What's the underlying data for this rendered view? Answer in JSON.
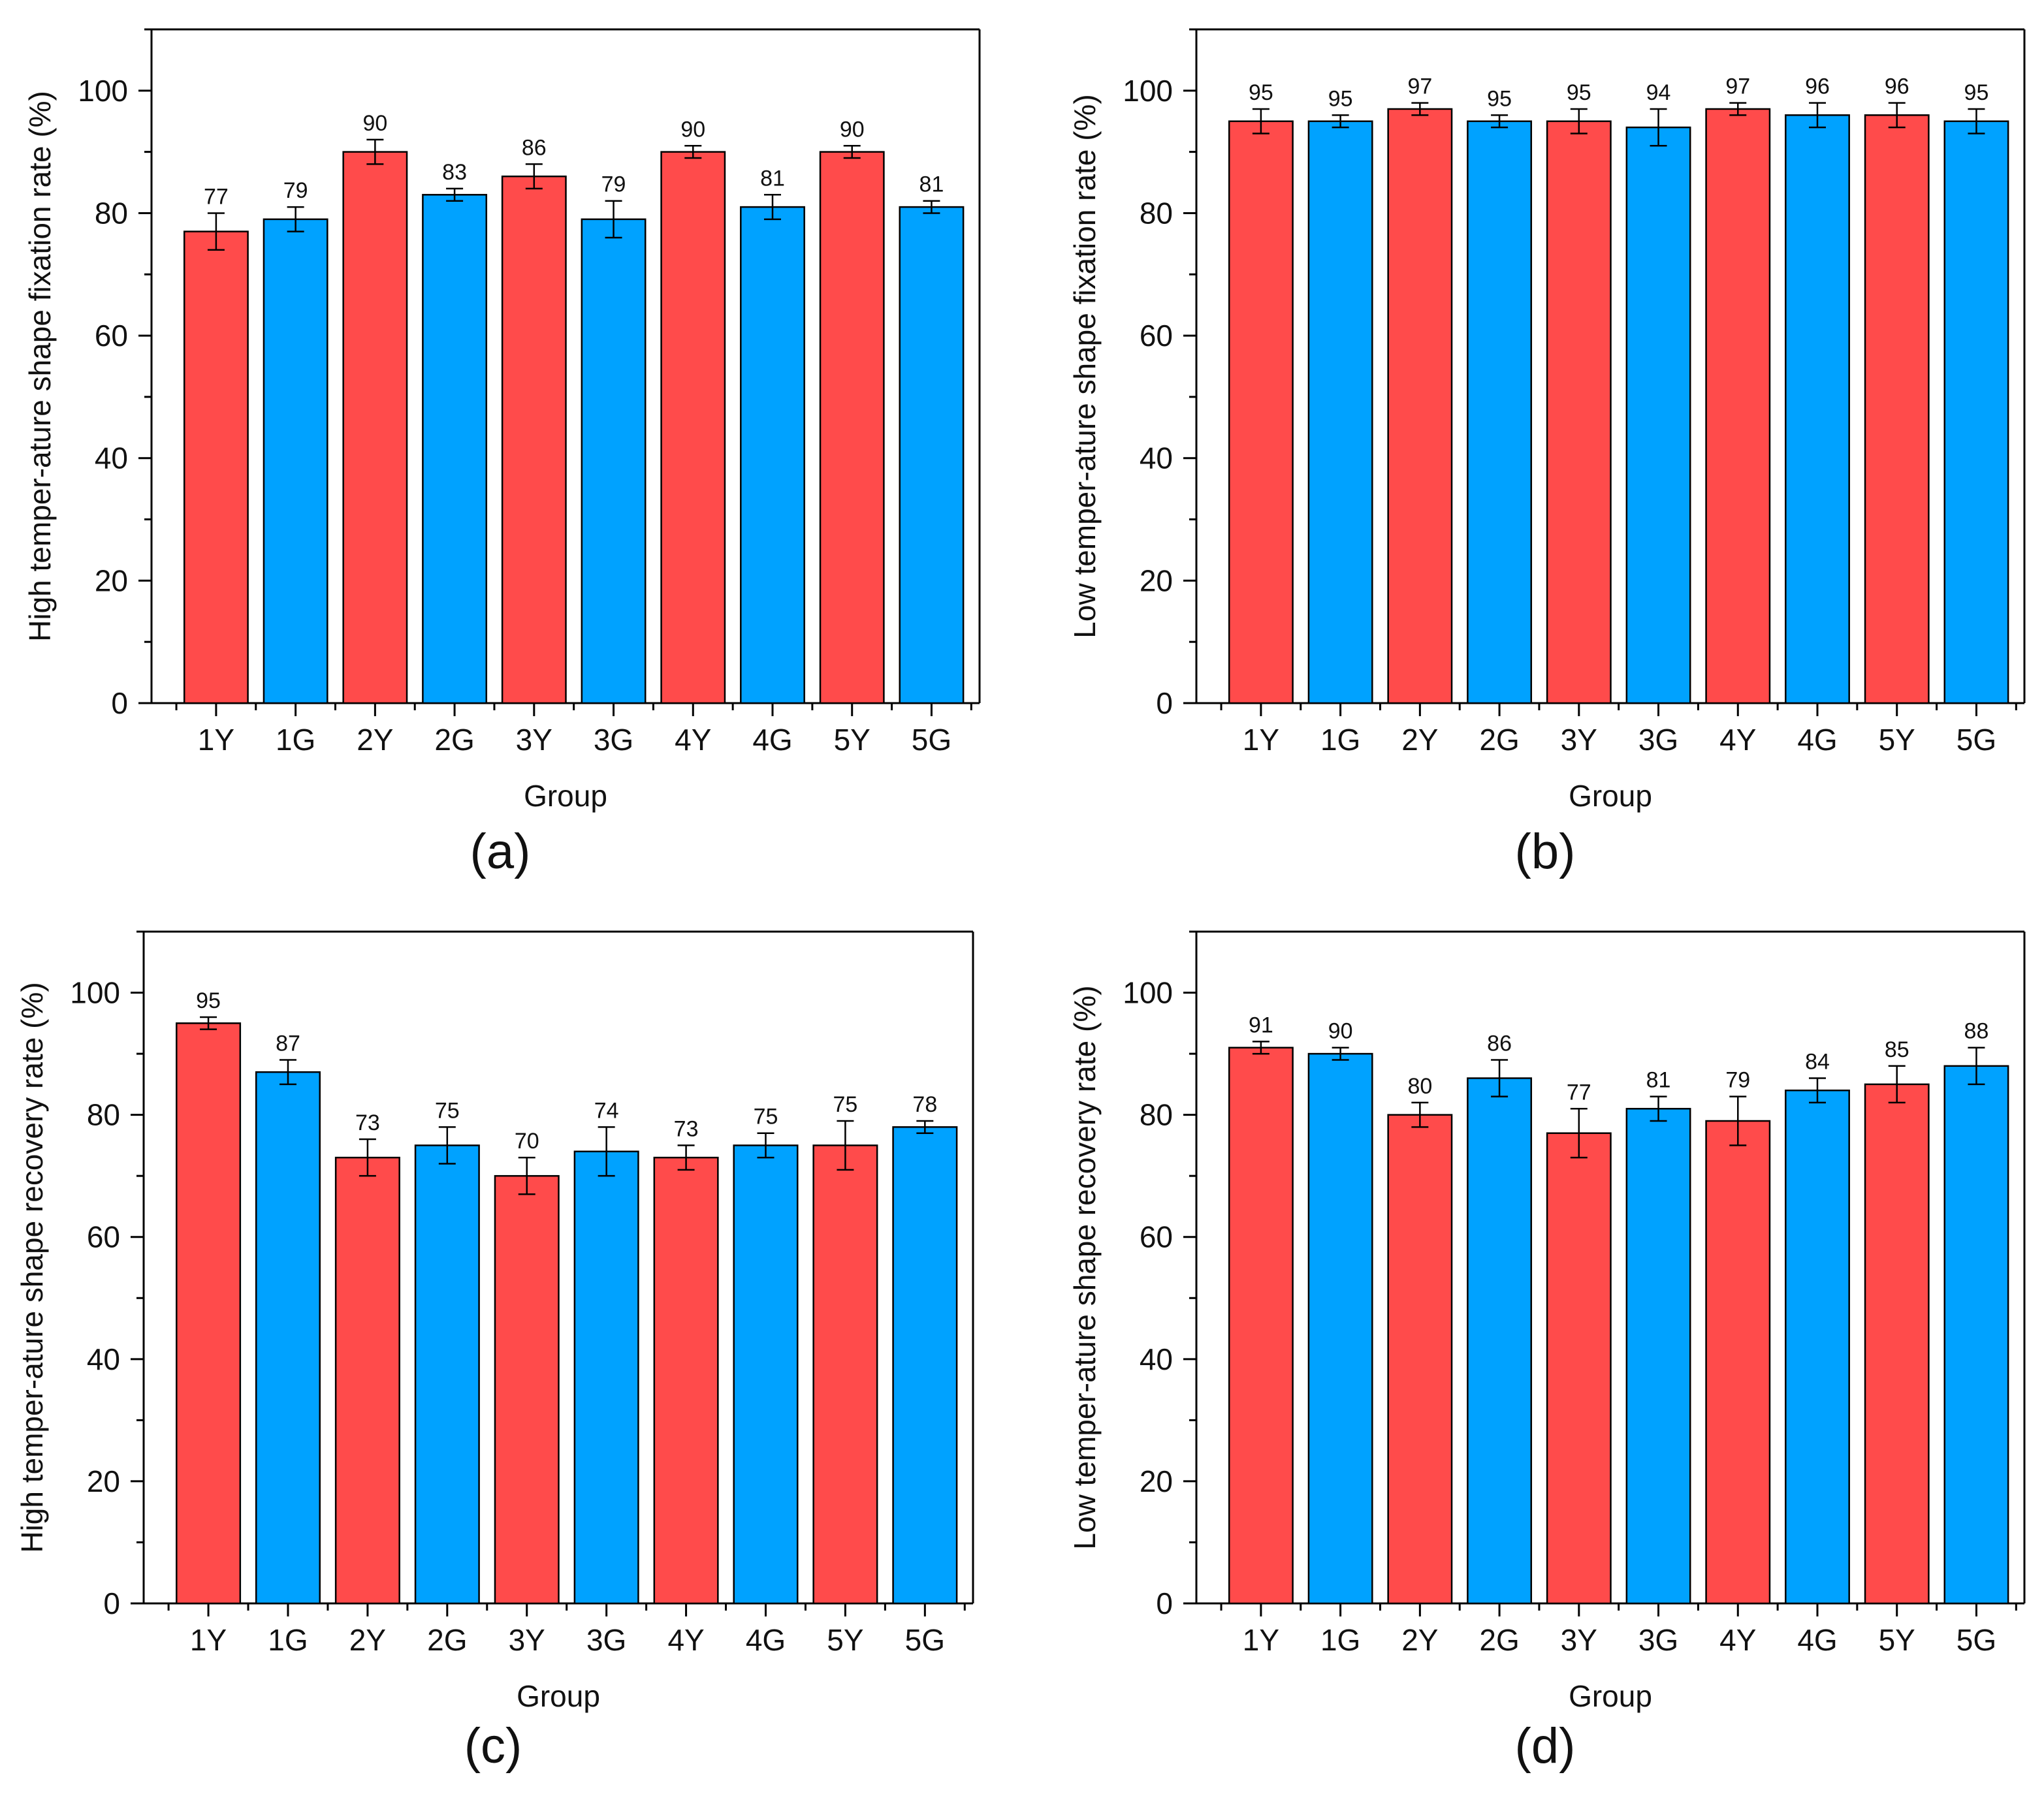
{
  "colors": {
    "y_series": "#ff4b4b",
    "g_series": "#00a2ff",
    "axis": "#000000"
  },
  "chart_data": [
    {
      "type": "bar",
      "panel_label": "(a)",
      "xlabel": "Group",
      "ylabel": "High temper-ature shape fixation rate (%)",
      "categories": [
        "1Y",
        "1G",
        "2Y",
        "2G",
        "3Y",
        "3G",
        "4Y",
        "4G",
        "5Y",
        "5G"
      ],
      "values": [
        77,
        79,
        90,
        83,
        86,
        79,
        90,
        81,
        90,
        81
      ],
      "errors": [
        3,
        2,
        2,
        1,
        2,
        3,
        1,
        2,
        1,
        1
      ],
      "ylim": [
        0,
        110
      ],
      "yticks": [
        0,
        20,
        40,
        60,
        80,
        100
      ],
      "grid": false
    },
    {
      "type": "bar",
      "panel_label": "(b)",
      "xlabel": "Group",
      "ylabel": "Low temper-ature shape fixation rate (%)",
      "categories": [
        "1Y",
        "1G",
        "2Y",
        "2G",
        "3Y",
        "3G",
        "4Y",
        "4G",
        "5Y",
        "5G"
      ],
      "values": [
        95,
        95,
        97,
        95,
        95,
        94,
        97,
        96,
        96,
        95
      ],
      "errors": [
        2,
        1,
        1,
        1,
        2,
        3,
        1,
        2,
        2,
        2
      ],
      "ylim": [
        0,
        110
      ],
      "yticks": [
        0,
        20,
        40,
        60,
        80,
        100
      ],
      "grid": false
    },
    {
      "type": "bar",
      "panel_label": "(c)",
      "xlabel": "Group",
      "ylabel": "High temper-ature shape recovery rate (%)",
      "categories": [
        "1Y",
        "1G",
        "2Y",
        "2G",
        "3Y",
        "3G",
        "4Y",
        "4G",
        "5Y",
        "5G"
      ],
      "values": [
        95,
        87,
        73,
        75,
        70,
        74,
        73,
        75,
        75,
        78
      ],
      "errors": [
        1,
        2,
        3,
        3,
        3,
        4,
        2,
        2,
        4,
        1
      ],
      "ylim": [
        0,
        110
      ],
      "yticks": [
        0,
        20,
        40,
        60,
        80,
        100
      ],
      "grid": false
    },
    {
      "type": "bar",
      "panel_label": "(d)",
      "xlabel": "Group",
      "ylabel": "Low temper-ature shape recovery rate (%)",
      "categories": [
        "1Y",
        "1G",
        "2Y",
        "2G",
        "3Y",
        "3G",
        "4Y",
        "4G",
        "5Y",
        "5G"
      ],
      "values": [
        91,
        90,
        80,
        86,
        77,
        81,
        79,
        84,
        85,
        88
      ],
      "errors": [
        1,
        1,
        2,
        3,
        4,
        2,
        4,
        2,
        3,
        3
      ],
      "ylim": [
        0,
        110
      ],
      "yticks": [
        0,
        20,
        40,
        60,
        80,
        100
      ],
      "grid": false
    }
  ]
}
